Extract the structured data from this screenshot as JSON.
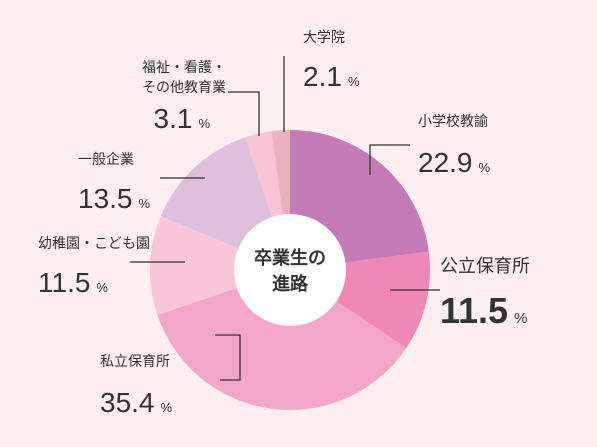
{
  "chart_data": {
    "type": "pie",
    "title": "卒業生の進路",
    "unit": "%",
    "slices": [
      {
        "name": "小学校教諭",
        "value": 22.9,
        "value_label": "22.9",
        "color": "#c47bb6"
      },
      {
        "name": "公立保育所",
        "value": 11.5,
        "value_label": "11.5",
        "color": "#ef88b6",
        "highlight": true
      },
      {
        "name": "私立保育所",
        "value": 35.4,
        "value_label": "35.4",
        "color": "#f2a6c8"
      },
      {
        "name": "幼稚園・こども園",
        "value": 11.5,
        "value_label": "11.5",
        "color": "#f8c6d8"
      },
      {
        "name": "一般企業",
        "value": 13.5,
        "value_label": "13.5",
        "color": "#dec0dd"
      },
      {
        "name_lines": [
          "福祉・看護・",
          "その他教育業"
        ],
        "value": 3.1,
        "value_label": "3.1",
        "color": "#f6c4d5"
      },
      {
        "name": "大学院",
        "value": 2.1,
        "value_label": "2.1",
        "color": "#e8b2ba"
      }
    ]
  }
}
